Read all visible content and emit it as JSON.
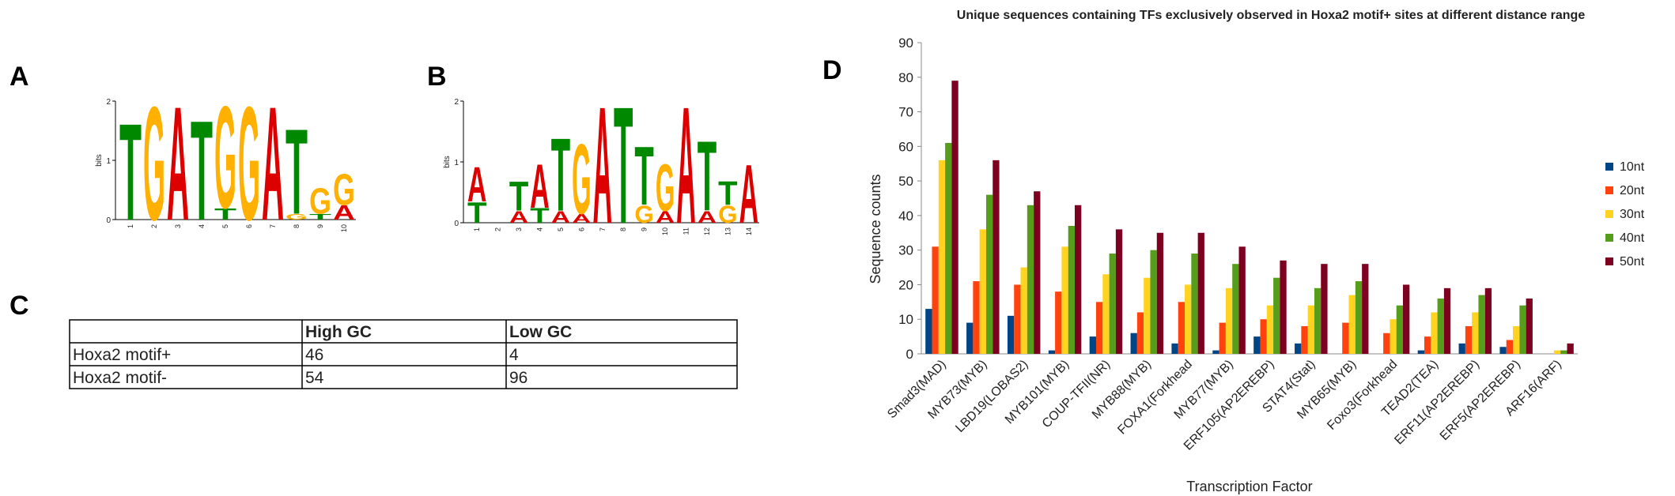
{
  "panels": [
    "A",
    "B",
    "C",
    "D"
  ],
  "logos": [
    {
      "ylabel": "bits",
      "yticks": [
        0,
        1,
        2
      ],
      "ylim": [
        0,
        2
      ],
      "positions": [
        {
          "number": 1,
          "letters": [
            {
              "letter": "T",
              "bits": 1.7
            }
          ]
        },
        {
          "number": 2,
          "letters": [
            {
              "letter": "G",
              "bits": 2.0
            }
          ]
        },
        {
          "number": 3,
          "letters": [
            {
              "letter": "A",
              "bits": 2.0
            }
          ]
        },
        {
          "number": 4,
          "letters": [
            {
              "letter": "T",
              "bits": 1.75
            }
          ]
        },
        {
          "number": 5,
          "letters": [
            {
              "letter": "T",
              "bits": 0.2
            },
            {
              "letter": "G",
              "bits": 1.8
            }
          ]
        },
        {
          "number": 6,
          "letters": [
            {
              "letter": "G",
              "bits": 2.0
            }
          ]
        },
        {
          "number": 7,
          "letters": [
            {
              "letter": "A",
              "bits": 2.0
            }
          ]
        },
        {
          "number": 8,
          "letters": [
            {
              "letter": "G",
              "bits": 0.1
            },
            {
              "letter": "T",
              "bits": 1.5
            }
          ]
        },
        {
          "number": 9,
          "letters": [
            {
              "letter": "T",
              "bits": 0.1
            },
            {
              "letter": "G",
              "bits": 0.45
            }
          ]
        },
        {
          "number": 10,
          "letters": [
            {
              "letter": "A",
              "bits": 0.25
            },
            {
              "letter": "G",
              "bits": 0.55
            }
          ]
        }
      ]
    },
    {
      "ylabel": "bits",
      "yticks": [
        0,
        1,
        2
      ],
      "ylim": [
        0,
        2
      ],
      "positions": [
        {
          "number": 1,
          "letters": [
            {
              "letter": "T",
              "bits": 0.35
            },
            {
              "letter": "A",
              "bits": 0.6
            }
          ]
        },
        {
          "number": 2,
          "letters": []
        },
        {
          "number": 3,
          "letters": [
            {
              "letter": "A",
              "bits": 0.2
            },
            {
              "letter": "T",
              "bits": 0.5
            }
          ]
        },
        {
          "number": 4,
          "letters": [
            {
              "letter": "T",
              "bits": 0.25
            },
            {
              "letter": "A",
              "bits": 0.75
            }
          ]
        },
        {
          "number": 5,
          "letters": [
            {
              "letter": "A",
              "bits": 0.2
            },
            {
              "letter": "T",
              "bits": 1.25
            }
          ]
        },
        {
          "number": 6,
          "letters": [
            {
              "letter": "A",
              "bits": 0.15
            },
            {
              "letter": "G",
              "bits": 1.2
            }
          ]
        },
        {
          "number": 7,
          "letters": [
            {
              "letter": "A",
              "bits": 2.0
            }
          ]
        },
        {
          "number": 8,
          "letters": [
            {
              "letter": "T",
              "bits": 2.0
            }
          ]
        },
        {
          "number": 9,
          "letters": [
            {
              "letter": "G",
              "bits": 0.3
            },
            {
              "letter": "T",
              "bits": 1.0
            }
          ]
        },
        {
          "number": 10,
          "letters": [
            {
              "letter": "A",
              "bits": 0.2
            },
            {
              "letter": "G",
              "bits": 0.8
            }
          ]
        },
        {
          "number": 11,
          "letters": [
            {
              "letter": "A",
              "bits": 2.0
            }
          ]
        },
        {
          "number": 12,
          "letters": [
            {
              "letter": "A",
              "bits": 0.2
            },
            {
              "letter": "T",
              "bits": 1.2
            }
          ]
        },
        {
          "number": 13,
          "letters": [
            {
              "letter": "G",
              "bits": 0.3
            },
            {
              "letter": "T",
              "bits": 0.4
            }
          ]
        },
        {
          "number": 14,
          "letters": [
            {
              "letter": "A",
              "bits": 1.0
            }
          ]
        }
      ]
    }
  ],
  "letter_colors": {
    "A": "#dd0000",
    "T": "#008800",
    "G": "#ffb000"
  },
  "table": {
    "header": [
      "High GC",
      "Low GC"
    ],
    "rows": [
      [
        "Hoxa2 motif+",
        46,
        4
      ],
      [
        "Hoxa2 motif-",
        54,
        96
      ]
    ]
  },
  "chart_data": {
    "type": "bar",
    "title": "Unique sequences containing TFs exclusively observed in Hoxa2 motif+ sites at different distance range",
    "ylabel": "Sequence counts",
    "xlabel": "Transcription Factor",
    "categories": [
      "Smad3(MAD)",
      "MYB73(MYB)",
      "LBD19(LOBAS2)",
      "MYB101(MYB)",
      "COUP-TFII(NR)",
      "MYB88(MYB)",
      "FOXA1(Forkhead",
      "MYB77(MYB)",
      "ERF105(AP2EREBP)",
      "STAT4(Stat)",
      "MYB65(MYB)",
      "Foxo3(Forkhead",
      "TEAD2(TEA)",
      "ERF11(AP2EREBP)",
      "ERF5(AP2EREBP)",
      "ARF16(ARF)"
    ],
    "series": [
      {
        "name": "10nt",
        "color": "#004586",
        "values": [
          13,
          9,
          11,
          1,
          5,
          6,
          3,
          1,
          5,
          3,
          0,
          0,
          1,
          3,
          2,
          0
        ]
      },
      {
        "name": "20nt",
        "color": "#ff420e",
        "values": [
          31,
          21,
          20,
          18,
          15,
          12,
          15,
          9,
          10,
          8,
          9,
          6,
          5,
          8,
          4,
          0
        ]
      },
      {
        "name": "30nt",
        "color": "#ffd320",
        "values": [
          56,
          36,
          25,
          31,
          23,
          22,
          20,
          19,
          14,
          14,
          17,
          10,
          12,
          12,
          8,
          1
        ]
      },
      {
        "name": "40nt",
        "color": "#579d1c",
        "values": [
          61,
          46,
          43,
          37,
          29,
          30,
          29,
          26,
          22,
          19,
          21,
          14,
          16,
          17,
          14,
          1
        ]
      },
      {
        "name": "50nt",
        "color": "#7e0021",
        "values": [
          79,
          56,
          47,
          43,
          36,
          35,
          35,
          31,
          27,
          26,
          26,
          20,
          19,
          19,
          16,
          3
        ]
      }
    ],
    "ylim": [
      0,
      90
    ],
    "yticks": [
      0,
      10,
      20,
      30,
      40,
      50,
      60,
      70,
      80,
      90
    ],
    "grid": false,
    "legend": "right"
  }
}
